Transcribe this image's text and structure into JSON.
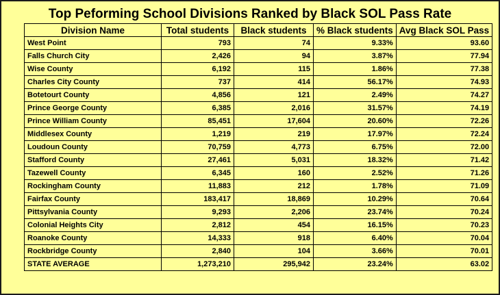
{
  "chart_data": {
    "type": "table",
    "title": "Top Peforming School Divisions Ranked by Black SOL Pass Rate",
    "columns": [
      "Division Name",
      "Total students",
      "Black students",
      "% Black students",
      "Avg Black SOL Pass"
    ],
    "rows": [
      [
        "West Point",
        "793",
        "74",
        "9.33%",
        "93.60"
      ],
      [
        "Falls Church City",
        "2,426",
        "94",
        "3.87%",
        "77.94"
      ],
      [
        "Wise County",
        "6,192",
        "115",
        "1.86%",
        "77.38"
      ],
      [
        "Charles City County",
        "737",
        "414",
        "56.17%",
        "74.93"
      ],
      [
        "Botetourt County",
        "4,856",
        "121",
        "2.49%",
        "74.27"
      ],
      [
        "Prince George County",
        "6,385",
        "2,016",
        "31.57%",
        "74.19"
      ],
      [
        "Prince William County",
        "85,451",
        "17,604",
        "20.60%",
        "72.26"
      ],
      [
        "Middlesex County",
        "1,219",
        "219",
        "17.97%",
        "72.24"
      ],
      [
        "Loudoun County",
        "70,759",
        "4,773",
        "6.75%",
        "72.00"
      ],
      [
        "Stafford County",
        "27,461",
        "5,031",
        "18.32%",
        "71.42"
      ],
      [
        "Tazewell County",
        "6,345",
        "160",
        "2.52%",
        "71.26"
      ],
      [
        "Rockingham County",
        "11,883",
        "212",
        "1.78%",
        "71.09"
      ],
      [
        "Fairfax County",
        "183,417",
        "18,869",
        "10.29%",
        "70.64"
      ],
      [
        "Pittsylvania County",
        "9,293",
        "2,206",
        "23.74%",
        "70.24"
      ],
      [
        "Colonial Heights City",
        "2,812",
        "454",
        "16.15%",
        "70.23"
      ],
      [
        "Roanoke County",
        "14,333",
        "918",
        "6.40%",
        "70.04"
      ],
      [
        "Rockbridge County",
        "2,840",
        "104",
        "3.66%",
        "70.01"
      ],
      [
        "STATE AVERAGE",
        "1,273,210",
        "295,942",
        "23.24%",
        "63.02"
      ]
    ],
    "colors": {
      "background": "#ffff99",
      "border": "#000000",
      "text": "#000000"
    }
  }
}
